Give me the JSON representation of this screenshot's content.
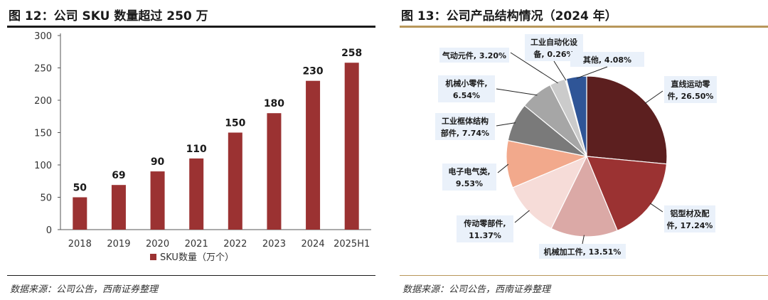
{
  "left": {
    "title": "图 12：公司 SKU 数量超过 250 万",
    "source": "数据来源：公司公告，西南证券整理",
    "rule_color": "#1a1a1a"
  },
  "right": {
    "title": "图 13：公司产品结构情况（2024 年）",
    "source": "数据来源：公司公告，西南证券整理",
    "rule_color": "#b8975a"
  },
  "chart_data": [
    {
      "type": "bar",
      "title": "公司 SKU 数量超过 250 万",
      "categories": [
        "2018",
        "2019",
        "2020",
        "2021",
        "2022",
        "2023",
        "2024",
        "2025H1"
      ],
      "series": [
        {
          "name": "SKU数量（万个）",
          "values": [
            50,
            69,
            90,
            110,
            150,
            180,
            230,
            258
          ],
          "color": "#9b3232"
        }
      ],
      "data_labels": [
        "50",
        "69",
        "90",
        "110",
        "150",
        "180",
        "230",
        "258"
      ],
      "ylim": [
        0,
        300
      ],
      "yticks": [
        0,
        50,
        100,
        150,
        200,
        250,
        300
      ],
      "xlabel": "",
      "ylabel": "",
      "legend": "bottom"
    },
    {
      "type": "pie",
      "title": "公司产品结构情况（2024 年）",
      "slices": [
        {
          "name": "直线运动零件",
          "value": 26.5,
          "label": [
            "直线运动零",
            "件, 26.50%"
          ],
          "color": "#5c1f1f"
        },
        {
          "name": "铝型材及配件",
          "value": 17.24,
          "label": [
            "铝型材及配",
            "件, 17.24%"
          ],
          "color": "#9b3232"
        },
        {
          "name": "机械加工件",
          "value": 13.51,
          "label": [
            "机械加工件, 13.51%"
          ],
          "color": "#dba9a6"
        },
        {
          "name": "传动零部件",
          "value": 11.37,
          "label": [
            "传动零部件,",
            "11.37%"
          ],
          "color": "#f6dcd8"
        },
        {
          "name": "电子电气类",
          "value": 9.53,
          "label": [
            "电子电气类,",
            "9.53%"
          ],
          "color": "#f2a98c"
        },
        {
          "name": "工业框体结构部件",
          "value": 7.74,
          "label": [
            "工业框体结构",
            "部件, 7.74%"
          ],
          "color": "#7a7a7a"
        },
        {
          "name": "机械小零件",
          "value": 6.54,
          "label": [
            "机械小零件,",
            "6.54%"
          ],
          "color": "#a6a6a6"
        },
        {
          "name": "气动元件",
          "value": 3.2,
          "label": [
            "气动元件, 3.20%"
          ],
          "color": "#cbcbcb"
        },
        {
          "name": "工业自动化设备",
          "value": 0.26,
          "label": [
            "工业自动化设",
            "备, 0.26%"
          ],
          "color": "#e8e8e8"
        },
        {
          "name": "其他",
          "value": 4.08,
          "label": [
            "其他, 4.08%"
          ],
          "color": "#2f5597"
        }
      ],
      "start": "12 o'clock",
      "direction": "clockwise",
      "legend": "none"
    }
  ]
}
